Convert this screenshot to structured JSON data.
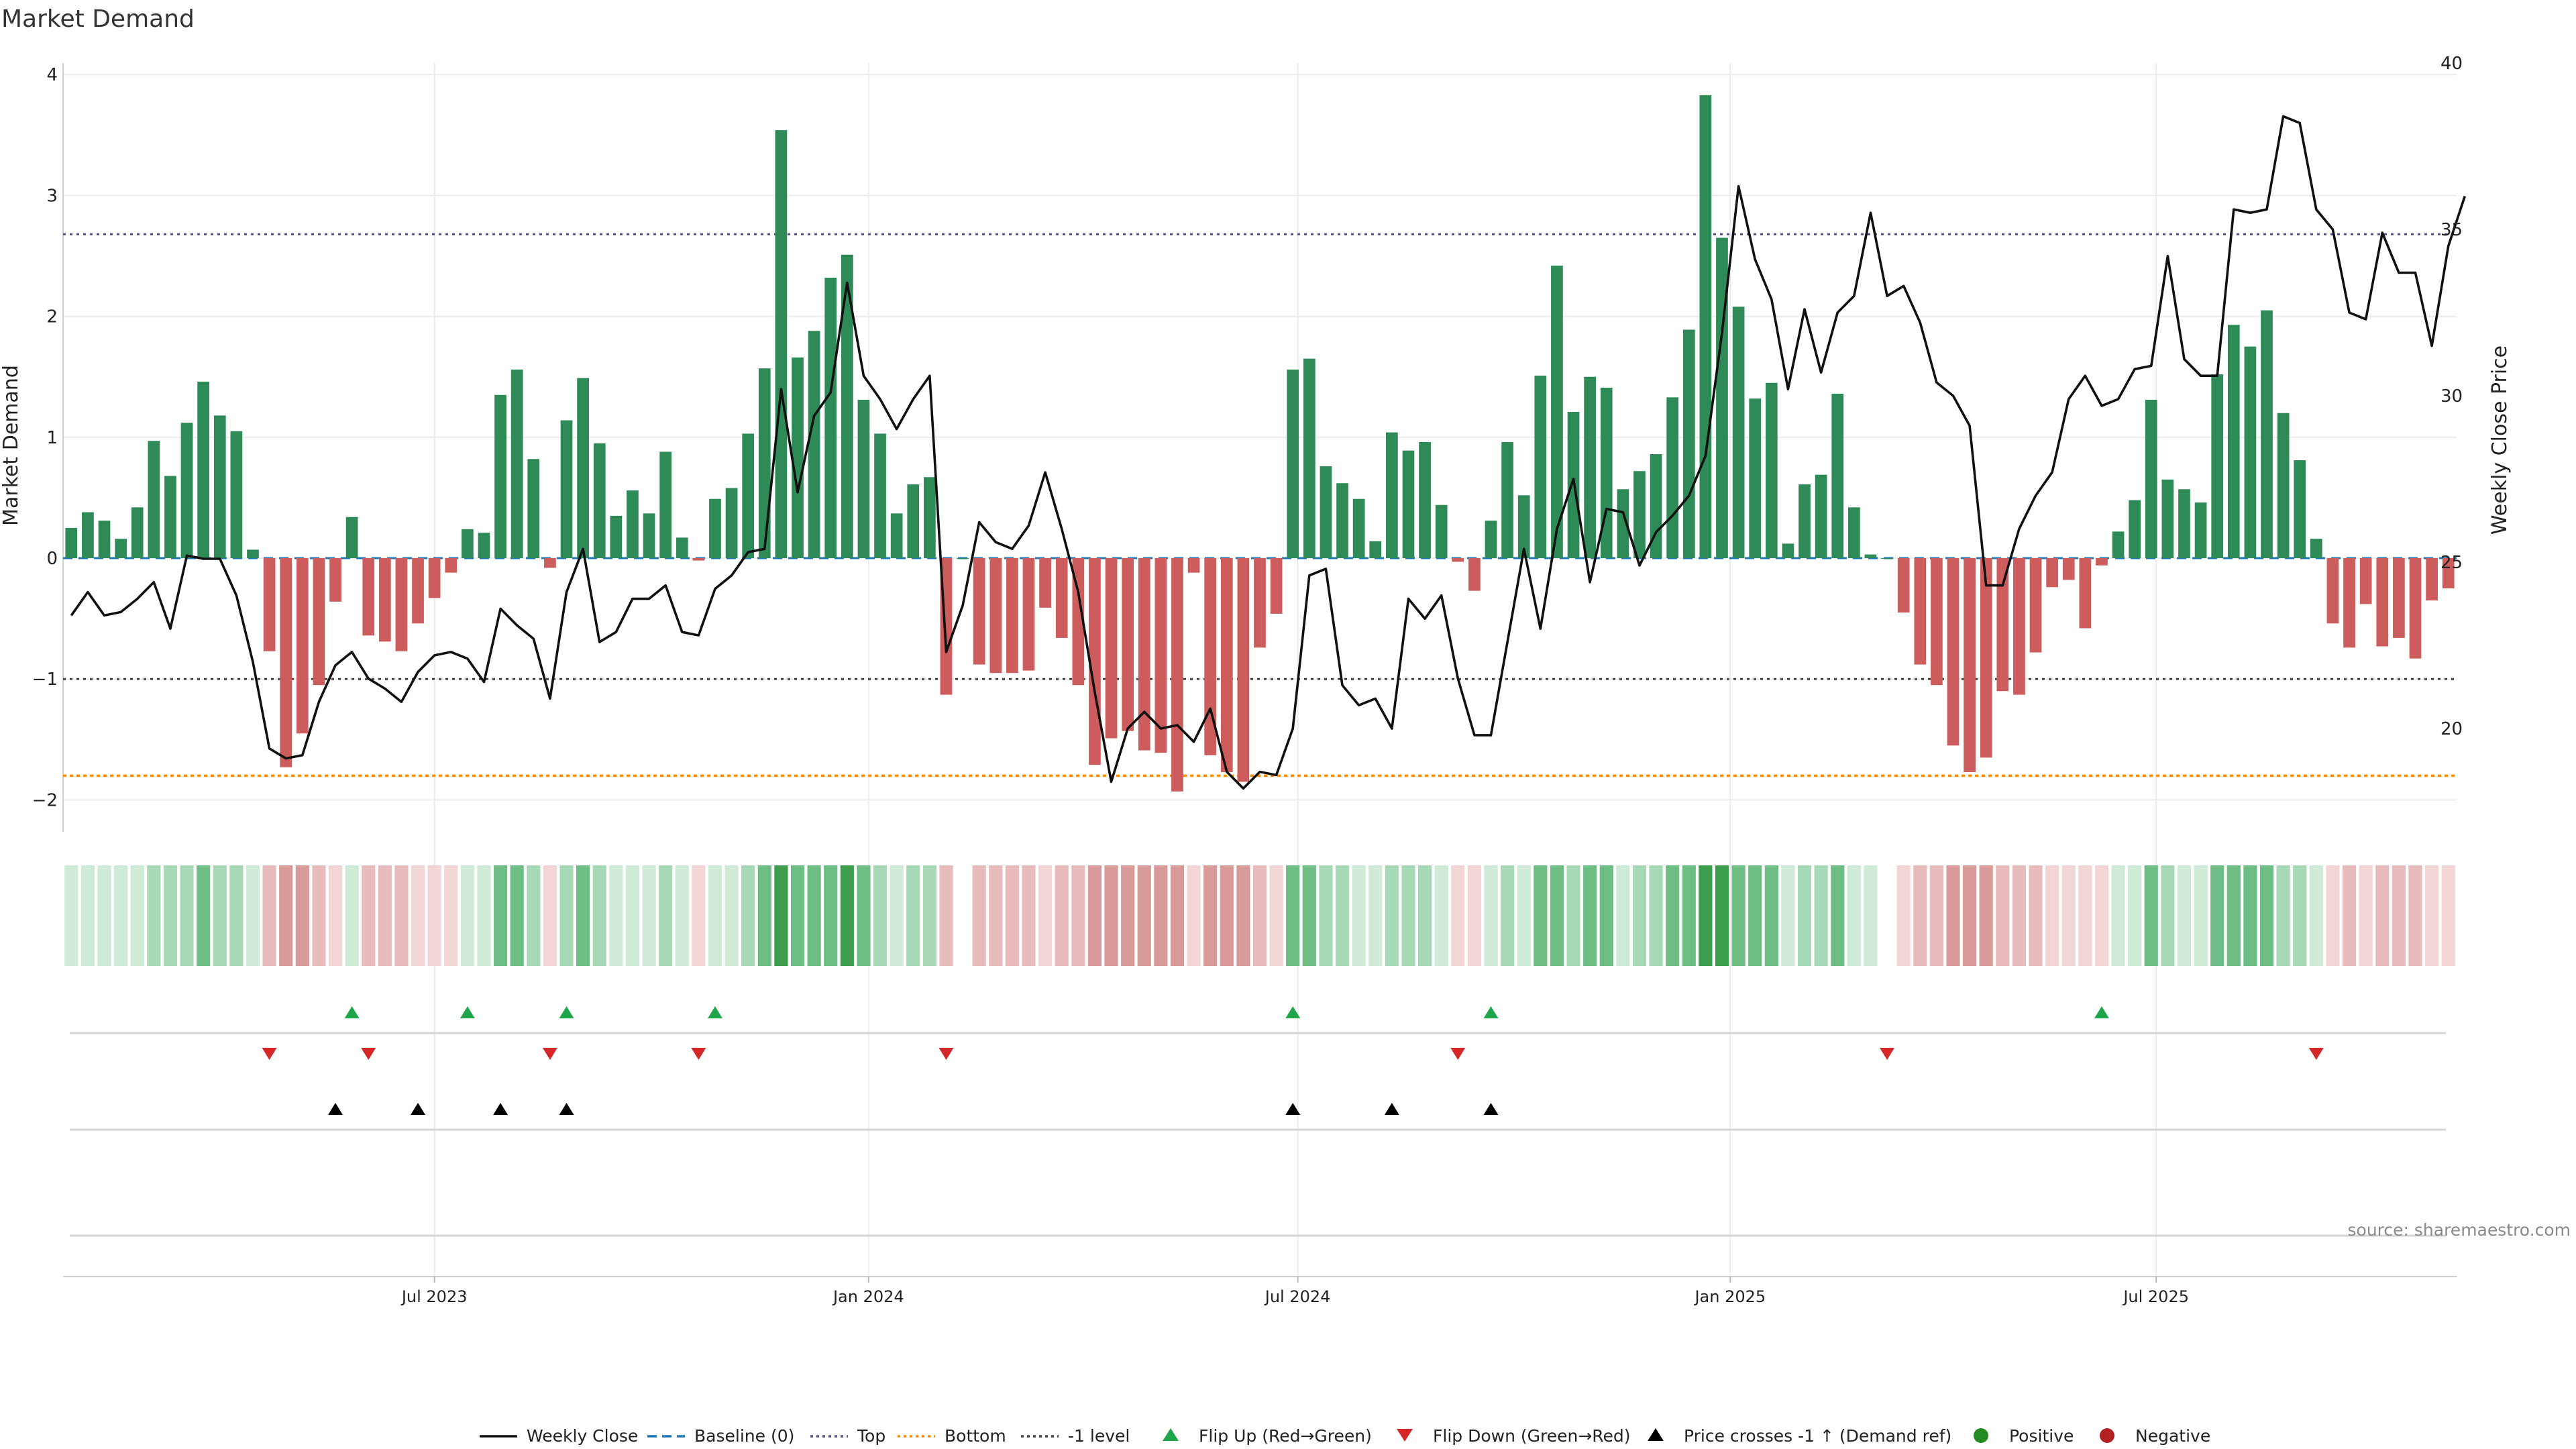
{
  "chart_data": {
    "type": "bar",
    "title": "Market Demand",
    "ylabel": "Market Demand",
    "y2label": "Weekly Close Price",
    "ylim": [
      -2.2,
      4.1
    ],
    "y2lim": [
      17.6,
      40.2
    ],
    "yticks": [
      "4",
      "3",
      "2",
      "1",
      "0",
      "−1",
      "−2"
    ],
    "yticks_values": [
      4,
      3,
      2,
      1,
      0,
      -1,
      -2
    ],
    "y2ticks": [
      "40",
      "35",
      "30",
      "25",
      "20"
    ],
    "y2ticks_values": [
      40,
      35,
      30,
      25,
      20
    ],
    "levels": {
      "top": 2.68,
      "bottom": -1.8,
      "minus_one": -1.0,
      "baseline": 0
    },
    "week_range": {
      "first": "2023-02-20",
      "last": "2025-10-27",
      "count": 145
    },
    "xticks": [
      {
        "label": "Jul 2023",
        "index": 22
      },
      {
        "label": "Jan 2024",
        "index": 48.3
      },
      {
        "label": "Jul 2024",
        "index": 74.3
      },
      {
        "label": "Jan 2025",
        "index": 100.5
      },
      {
        "label": "Jul 2025",
        "index": 126.3
      }
    ],
    "demand": [
      0.25,
      0.38,
      0.31,
      0.16,
      0.42,
      0.97,
      0.68,
      1.12,
      1.46,
      1.18,
      1.05,
      0.07,
      -0.77,
      -1.73,
      -1.45,
      -1.05,
      -0.36,
      0.34,
      -0.64,
      -0.69,
      -0.77,
      -0.54,
      -0.33,
      -0.12,
      0.24,
      0.21,
      1.35,
      1.56,
      0.82,
      -0.08,
      1.14,
      1.49,
      0.95,
      0.35,
      0.56,
      0.37,
      0.88,
      0.17,
      -0.02,
      0.49,
      0.58,
      1.03,
      1.57,
      3.54,
      1.66,
      1.88,
      2.32,
      2.51,
      1.31,
      1.03,
      0.37,
      0.61,
      0.67,
      -1.13,
      0.0,
      -0.88,
      -0.95,
      -0.95,
      -0.93,
      -0.41,
      -0.66,
      -1.05,
      -1.71,
      -1.49,
      -1.43,
      -1.59,
      -1.61,
      -1.93,
      -0.12,
      -1.63,
      -1.77,
      -1.85,
      -0.74,
      -0.46,
      1.56,
      1.65,
      0.76,
      0.62,
      0.49,
      0.14,
      1.04,
      0.89,
      0.96,
      0.44,
      -0.03,
      -0.27,
      0.31,
      0.96,
      0.52,
      1.51,
      2.42,
      1.21,
      1.5,
      1.41,
      0.57,
      0.72,
      0.86,
      1.33,
      1.89,
      3.83,
      2.65,
      2.08,
      1.32,
      1.45,
      0.12,
      0.61,
      0.69,
      1.36,
      0.42,
      0.03,
      0.0,
      -0.45,
      -0.88,
      -1.05,
      -1.55,
      -1.77,
      -1.65,
      -1.1,
      -1.13,
      -0.78,
      -0.24,
      -0.18,
      -0.58,
      -0.06,
      0.22,
      0.48,
      1.31,
      0.65,
      0.57,
      0.46,
      1.52,
      1.93,
      1.75,
      2.05,
      1.2,
      0.81,
      0.16,
      -0.54,
      -0.74,
      -0.38,
      -0.73,
      -0.66,
      -0.83,
      -0.35,
      -0.25
    ],
    "close": [
      23.4,
      24.1,
      23.4,
      23.5,
      23.9,
      24.4,
      23.0,
      25.2,
      25.1,
      25.1,
      24.0,
      22.0,
      19.4,
      19.1,
      19.2,
      20.8,
      21.9,
      22.3,
      21.5,
      21.2,
      20.8,
      21.7,
      22.2,
      22.3,
      22.1,
      21.4,
      23.6,
      23.1,
      22.7,
      20.9,
      24.1,
      25.4,
      22.6,
      22.9,
      23.9,
      23.9,
      24.3,
      22.9,
      22.8,
      24.2,
      24.6,
      25.3,
      25.4,
      30.2,
      27.1,
      29.4,
      30.1,
      33.4,
      30.6,
      29.9,
      29.0,
      29.9,
      30.6,
      22.3,
      23.7,
      26.2,
      25.6,
      25.4,
      26.1,
      27.7,
      26.0,
      24.1,
      21.1,
      18.4,
      20.0,
      20.5,
      20.0,
      20.1,
      19.6,
      20.6,
      18.7,
      18.2,
      18.7,
      18.6,
      20.0,
      24.6,
      24.8,
      21.3,
      20.7,
      20.9,
      20.0,
      23.9,
      23.3,
      24.0,
      21.5,
      19.8,
      19.8,
      22.6,
      25.4,
      23.0,
      26.0,
      27.5,
      24.4,
      26.6,
      26.5,
      24.9,
      25.9,
      26.4,
      27.0,
      28.2,
      31.9,
      36.3,
      34.1,
      32.9,
      30.2,
      32.6,
      30.7,
      32.5,
      33.0,
      35.5,
      33.0,
      33.3,
      32.2,
      30.4,
      30.0,
      29.1,
      24.3,
      24.3,
      26.0,
      27.0,
      27.7,
      29.9,
      30.6,
      29.7,
      29.9,
      30.8,
      30.9,
      34.2,
      31.1,
      30.6,
      30.6,
      35.6,
      35.5,
      35.6,
      38.4,
      38.2,
      35.6,
      35.0,
      32.5,
      32.3,
      34.9,
      33.7,
      33.7,
      31.5,
      34.5,
      36.0
    ],
    "strength_bins": {
      "strong": 2.5,
      "medium": 1.3,
      "light": 0.6
    },
    "colors": {
      "positive_bar": "#2e8b57",
      "negative_bar": "#cd5c5c",
      "close_line": "#111111",
      "baseline": "#1f77b4",
      "top": "#5a4f8a",
      "bottom": "#ff8c00",
      "minus_one": "#444444",
      "flip_up": "#1fa64b",
      "flip_down": "#d62728",
      "price_cross": "#000000",
      "positive_dot": "#228b22",
      "negative_dot": "#b22222",
      "heat_pos": [
        "#cfead7",
        "#a8d9b6",
        "#6dbd85",
        "#3c9e4c"
      ],
      "heat_neg": [
        "#f2d6d6",
        "#e8bcbc",
        "#d99a9a",
        "#c86d6d"
      ]
    },
    "events": {
      "flip_up": [
        17,
        24,
        30,
        39,
        74,
        86,
        123
      ],
      "flip_down": [
        12,
        18,
        29,
        38,
        53,
        84,
        110,
        136
      ],
      "price_cross": [
        16,
        21,
        26,
        30,
        74,
        80,
        86
      ]
    },
    "legend": [
      {
        "label": "Weekly Close",
        "kind": "solid-line",
        "color": "#111111"
      },
      {
        "label": "Baseline (0)",
        "kind": "dash-line",
        "color": "#1f77b4"
      },
      {
        "label": "Top",
        "kind": "dot-line",
        "color": "#5a4f8a"
      },
      {
        "label": "Bottom",
        "kind": "dot-line",
        "color": "#ff8c00"
      },
      {
        "label": "-1 level",
        "kind": "dot-line",
        "color": "#444444"
      },
      {
        "label": "Flip Up (Red→Green)",
        "kind": "tri-up",
        "color": "#1fa64b"
      },
      {
        "label": "Flip Down (Green→Red)",
        "kind": "tri-down",
        "color": "#d62728"
      },
      {
        "label": "Price crosses -1 ↑ (Demand ref)",
        "kind": "tri-up",
        "color": "#000000"
      },
      {
        "label": "Positive",
        "kind": "dot",
        "color": "#228b22"
      },
      {
        "label": "Negative",
        "kind": "dot",
        "color": "#b22222"
      }
    ],
    "source": "source: sharemaestro.com"
  }
}
